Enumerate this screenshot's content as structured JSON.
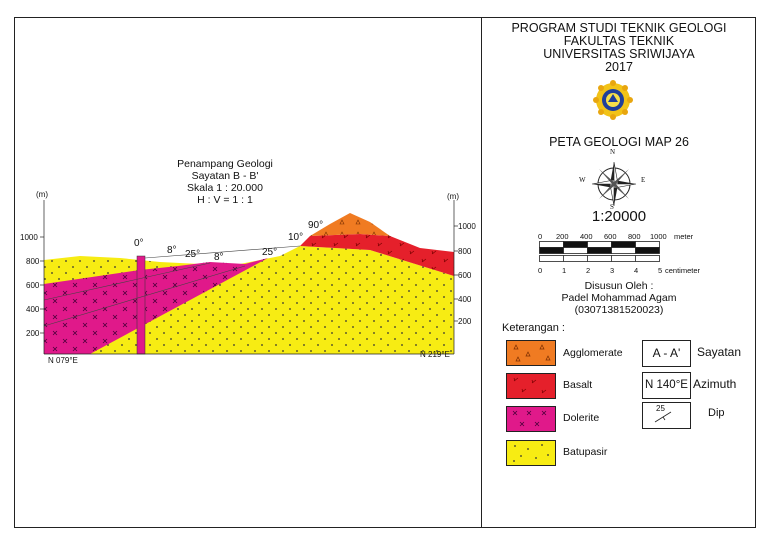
{
  "header": {
    "line1": "PROGRAM STUDI TEKNIK GEOLOGI",
    "line2": "FAKULTAS TEKNIK",
    "line3": "UNIVERSITAS SRIWIJAYA",
    "year": "2017"
  },
  "map_title": "PETA GEOLOGI MAP 26",
  "compass": {
    "north": "N",
    "south": "S",
    "east": "E",
    "west": "W"
  },
  "scale": {
    "ratio": "1:20000",
    "top_ticks": [
      "0",
      "200",
      "400",
      "600",
      "800",
      "1000"
    ],
    "top_unit": "meter",
    "bottom_ticks": [
      "0",
      "1",
      "2",
      "3",
      "4",
      "5"
    ],
    "bottom_unit": "centimeter"
  },
  "author": {
    "label": "Disusun Oleh :",
    "name": "Padel Mohammad Agam",
    "id": "(03071381520023)"
  },
  "section": {
    "title": "Penampang Geologi",
    "subtitle": "Sayatan B - B'",
    "scale": "Skala 1 : 20.000",
    "hv": "H : V = 1 : 1",
    "unit_left": "(m)",
    "unit_right": "(m)",
    "left_ticks": [
      "1000",
      "800",
      "600",
      "400",
      "200"
    ],
    "right_ticks": [
      "1000",
      "800",
      "600",
      "400",
      "200"
    ],
    "azimuth_left": "N 079°E",
    "azimuth_right": "N 219°E",
    "dips": [
      "0°",
      "8°",
      "25°",
      "8°",
      "25°",
      "10°",
      "90°"
    ]
  },
  "legend": {
    "title": "Keterangan :",
    "units": [
      {
        "label": "Agglomerate",
        "color": "#f07b22"
      },
      {
        "label": "Basalt",
        "color": "#e5202b"
      },
      {
        "label": "Dolerite",
        "color": "#e0198a"
      },
      {
        "label": "Batupasir",
        "color": "#f7ec13"
      }
    ],
    "symbols": {
      "sayatan_box": "A - A'",
      "sayatan_label": "Sayatan",
      "azimuth_box": "N 140°E",
      "azimuth_label": "Azimuth",
      "dip_value": "25",
      "dip_label": "Dip"
    }
  }
}
